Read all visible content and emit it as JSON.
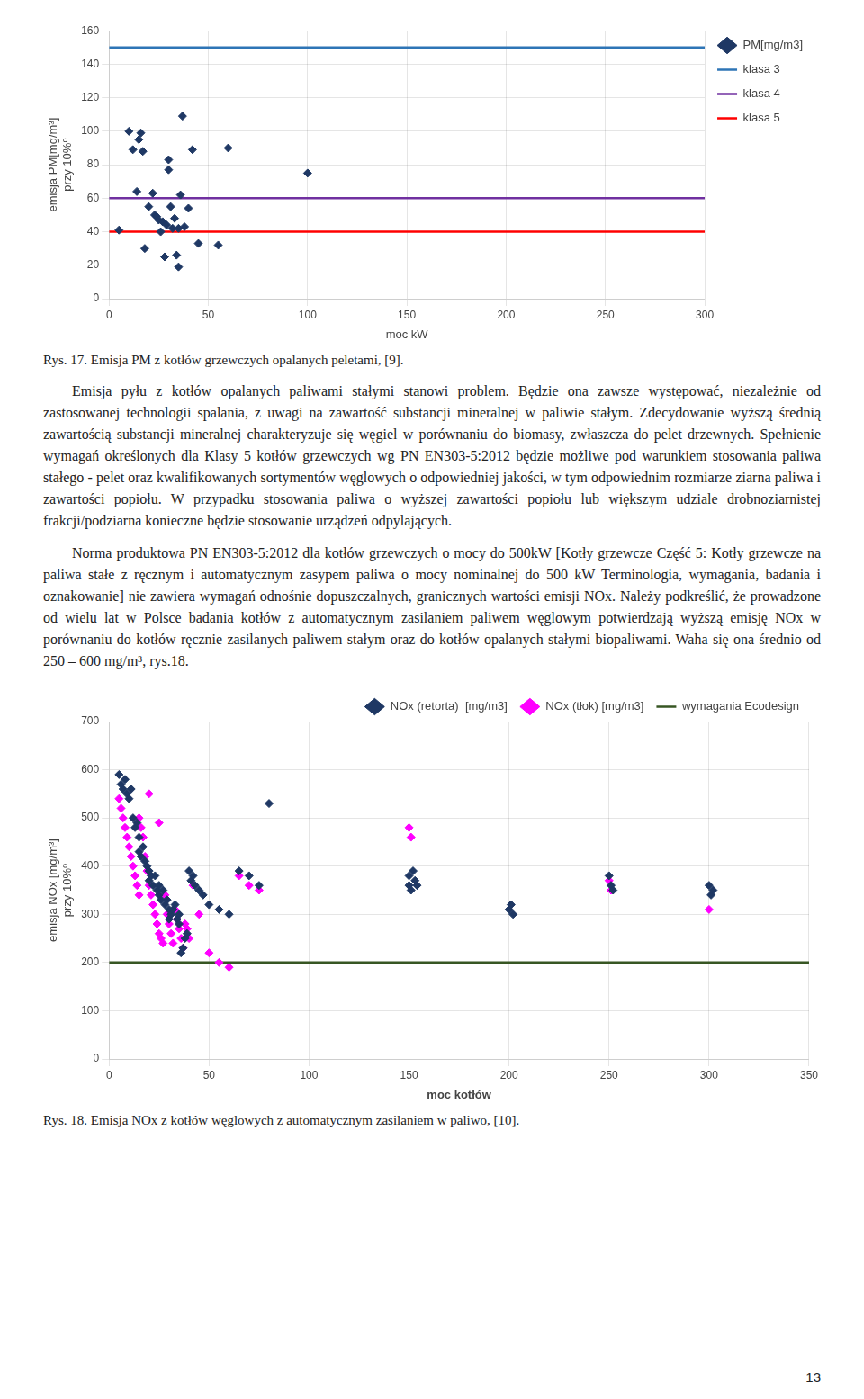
{
  "chart_data": [
    {
      "type": "scatter",
      "caption": "Rys. 17. Emisja PM z kotłów grzewczych opalanych peletami, [9].",
      "xlabel": "moc kW",
      "ylabel": "emisja PM[mg/m³]\nprzy 10%⁰",
      "xlim": [
        0,
        300
      ],
      "ylim": [
        0,
        160
      ],
      "xticks": [
        0,
        50,
        100,
        150,
        200,
        250,
        300
      ],
      "yticks": [
        0,
        20,
        40,
        60,
        80,
        100,
        120,
        140,
        160
      ],
      "grid": true,
      "legend": "right",
      "series": [
        {
          "name": "PM[mg/m3]",
          "type": "scatter",
          "marker": "diamond",
          "color": "#1F3864",
          "x": [
            5,
            10,
            12,
            14,
            15,
            16,
            17,
            18,
            20,
            22,
            23,
            24,
            25,
            26,
            27,
            28,
            29,
            30,
            30,
            31,
            32,
            33,
            34,
            35,
            35,
            36,
            37,
            38,
            40,
            42,
            45,
            55,
            60,
            100
          ],
          "values": [
            41,
            100,
            89,
            64,
            95,
            99,
            88,
            30,
            55,
            63,
            50,
            49,
            47,
            40,
            46,
            25,
            44,
            83,
            77,
            55,
            42,
            48,
            26,
            19,
            42,
            62,
            109,
            43,
            54,
            89,
            33,
            32,
            90,
            75
          ]
        },
        {
          "name": "klasa 3",
          "type": "hline",
          "color": "#2E75B6",
          "values": [
            150
          ]
        },
        {
          "name": "klasa 4",
          "type": "hline",
          "color": "#7030A0",
          "values": [
            60
          ]
        },
        {
          "name": "klasa 5",
          "type": "hline",
          "color": "#FF0000",
          "values": [
            40
          ]
        }
      ]
    },
    {
      "type": "scatter",
      "caption": "Rys. 18. Emisja NOx z kotłów węglowych z automatycznym zasilaniem w paliwo, [10].",
      "xlabel": "moc kotłów",
      "ylabel": "emisja NOx [mg/m³]\nprzy 10%⁰",
      "xlim": [
        0,
        350
      ],
      "ylim": [
        0,
        700
      ],
      "xticks": [
        0,
        50,
        100,
        150,
        200,
        250,
        300,
        350
      ],
      "yticks": [
        0,
        100,
        200,
        300,
        400,
        500,
        600,
        700
      ],
      "grid": true,
      "legend": "upper right",
      "series": [
        {
          "name": "NOx (retorta)  [mg/m3]",
          "type": "scatter",
          "marker": "diamond",
          "color": "#1F3864",
          "x": [
            5,
            6,
            7,
            8,
            9,
            10,
            11,
            12,
            13,
            14,
            15,
            15,
            16,
            17,
            18,
            19,
            20,
            20,
            21,
            22,
            23,
            24,
            25,
            25,
            26,
            27,
            28,
            29,
            30,
            30,
            31,
            32,
            33,
            34,
            35,
            35,
            36,
            37,
            38,
            39,
            40,
            41,
            42,
            43,
            45,
            47,
            50,
            55,
            60,
            65,
            70,
            75,
            80,
            150,
            150,
            151,
            152,
            153,
            154,
            200,
            201,
            202,
            250,
            251,
            252,
            300,
            301,
            302
          ],
          "values": [
            590,
            570,
            560,
            580,
            550,
            540,
            560,
            500,
            480,
            490,
            460,
            430,
            420,
            440,
            410,
            400,
            390,
            370,
            380,
            360,
            380,
            350,
            340,
            360,
            330,
            350,
            320,
            330,
            310,
            290,
            300,
            310,
            320,
            290,
            280,
            300,
            220,
            230,
            250,
            260,
            390,
            370,
            380,
            360,
            350,
            340,
            320,
            310,
            300,
            390,
            380,
            360,
            530,
            380,
            360,
            350,
            390,
            370,
            360,
            310,
            320,
            300,
            380,
            360,
            350,
            360,
            340,
            350
          ]
        },
        {
          "name": "NOx (tłok) [mg/m3]",
          "type": "scatter",
          "marker": "diamond",
          "color": "#FF00FF",
          "x": [
            5,
            6,
            7,
            8,
            9,
            10,
            11,
            12,
            13,
            14,
            15,
            15,
            16,
            17,
            18,
            19,
            20,
            20,
            21,
            22,
            23,
            24,
            25,
            25,
            26,
            27,
            28,
            29,
            30,
            31,
            32,
            33,
            34,
            35,
            36,
            37,
            38,
            39,
            40,
            42,
            45,
            50,
            55,
            60,
            65,
            70,
            75,
            150,
            151,
            250,
            251,
            300
          ],
          "values": [
            540,
            520,
            500,
            480,
            460,
            440,
            420,
            400,
            380,
            360,
            340,
            500,
            480,
            460,
            420,
            390,
            360,
            550,
            340,
            320,
            300,
            280,
            260,
            490,
            250,
            240,
            340,
            300,
            280,
            260,
            240,
            310,
            290,
            270,
            250,
            230,
            280,
            270,
            250,
            360,
            300,
            220,
            200,
            190,
            380,
            360,
            350,
            480,
            460,
            370,
            350,
            310
          ]
        },
        {
          "name": "wymagania Ecodesign",
          "type": "hline",
          "color": "#375623",
          "values": [
            200
          ]
        }
      ]
    }
  ],
  "text": {
    "paragraphs": [
      "    Emisja pyłu z kotłów opalanych paliwami stałymi stanowi problem. Będzie ona zawsze występować, niezależnie od zastosowanej technologii spalania, z uwagi na zawartość substancji mineralnej w paliwie stałym. Zdecydowanie wyższą średnią zawartością substancji mineralnej charakteryzuje się węgiel w porównaniu do biomasy, zwłaszcza do pelet drzewnych. Spełnienie wymagań określonych dla Klasy 5 kotłów grzewczych wg PN EN303-5:2012 będzie możliwe pod warunkiem stosowania paliwa stałego - pelet oraz kwalifikowanych sortymentów węglowych o odpowiedniej jakości, w tym odpowiednim rozmiarze ziarna paliwa i zawartości popiołu. W przypadku stosowania paliwa o wyższej zawartości popiołu lub większym udziale drobnoziarnistej frakcji/podziarna konieczne będzie stosowanie urządzeń odpylających.",
      "    Norma produktowa PN EN303-5:2012 dla kotłów grzewczych o mocy do 500kW [⁠Kotły grzewcze Część 5: Kotły grzewcze na paliwa stałe z ręcznym i automatycznym zasypem paliwa o mocy nominalnej do 500 kW Terminologia, wymagania, badania i oznakowanie⁠] nie zawiera wymagań odnośnie dopuszczalnych, granicznych wartości emisji NOx. Należy podkreślić, że prowadzone od wielu lat w Polsce badania kotłów z automatycznym zasilaniem paliwem węglowym potwierdzają wyższą emisję NOx w porównaniu do kotłów ręcznie zasilanych paliwem stałym oraz do kotłów opalanych stałymi biopaliwami. Waha się ona średnio od 250 – 600 mg/m³, rys.18."
    ],
    "page_number": "13"
  }
}
